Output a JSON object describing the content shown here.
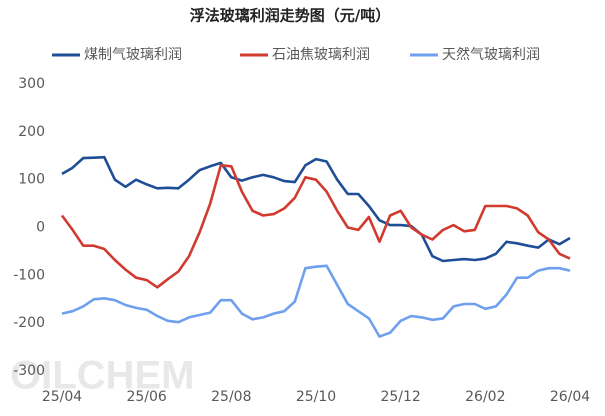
{
  "chart_data": {
    "type": "line",
    "title": "浮法玻璃利润走势图（元/吨）",
    "watermark": "OILCHEM",
    "categories": [
      "25/04",
      null,
      null,
      null,
      null,
      null,
      null,
      null,
      "25/06",
      null,
      null,
      null,
      null,
      null,
      null,
      null,
      "25/08",
      null,
      null,
      null,
      null,
      null,
      null,
      null,
      "25/10",
      null,
      null,
      null,
      null,
      null,
      null,
      null,
      "25/12",
      null,
      null,
      null,
      null,
      null,
      null,
      null,
      "26/02",
      null,
      null,
      null,
      null,
      null,
      null,
      null,
      "26/04"
    ],
    "ylim": [
      -300,
      300
    ],
    "yticks": [
      -300,
      -200,
      -100,
      0,
      100,
      200,
      300
    ],
    "grid": false,
    "series": [
      {
        "name": "煤制气玻璃利润",
        "color": "#1f4e96",
        "values": [
          112,
          125,
          145,
          146,
          147,
          100,
          85,
          100,
          90,
          82,
          83,
          82,
          100,
          120,
          128,
          135,
          105,
          98,
          105,
          110,
          105,
          97,
          95,
          130,
          143,
          138,
          100,
          70,
          70,
          45,
          15,
          5,
          5,
          3,
          -15,
          -60,
          -70,
          -68,
          -66,
          -68,
          -65,
          -55,
          -30,
          -33,
          -38,
          -42,
          -25,
          -35,
          -22
        ]
      },
      {
        "name": "石油焦玻璃利润",
        "color": "#d03a2f",
        "values": [
          25,
          -5,
          -38,
          -38,
          -45,
          -68,
          -88,
          -105,
          -110,
          -125,
          -108,
          -92,
          -60,
          -10,
          50,
          130,
          128,
          75,
          35,
          25,
          28,
          40,
          62,
          105,
          100,
          75,
          35,
          0,
          -5,
          22,
          -30,
          25,
          35,
          0,
          -15,
          -25,
          -5,
          5,
          -8,
          -5,
          45,
          45,
          45,
          40,
          25,
          -10,
          -25,
          -55,
          -65
        ]
      },
      {
        "name": "天然气玻璃利润",
        "color": "#6fa0ee",
        "values": [
          -180,
          -175,
          -165,
          -150,
          -148,
          -152,
          -162,
          -168,
          -172,
          -185,
          -195,
          -198,
          -188,
          -183,
          -178,
          -152,
          -152,
          -180,
          -192,
          -188,
          -180,
          -175,
          -155,
          -85,
          -82,
          -80,
          -120,
          -160,
          -175,
          -190,
          -228,
          -220,
          -195,
          -185,
          -188,
          -193,
          -190,
          -165,
          -160,
          -160,
          -170,
          -165,
          -140,
          -105,
          -105,
          -90,
          -85,
          -85,
          -90
        ]
      }
    ]
  }
}
